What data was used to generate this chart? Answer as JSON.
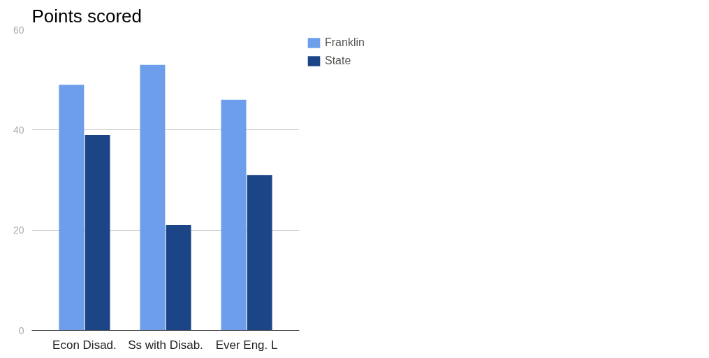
{
  "chart_data": {
    "type": "bar",
    "title": "Points scored",
    "categories": [
      "Econ Disad.",
      "Ss with Disab.",
      "Ever Eng. L"
    ],
    "series": [
      {
        "name": "Franklin",
        "color": "#6d9eeb",
        "values": [
          49,
          53,
          46
        ]
      },
      {
        "name": "State",
        "color": "#1c4587",
        "values": [
          39,
          21,
          31
        ]
      }
    ],
    "ylim": [
      0,
      60
    ],
    "yticks": [
      0,
      20,
      40,
      60
    ],
    "grid": "y",
    "legend": "top right"
  }
}
